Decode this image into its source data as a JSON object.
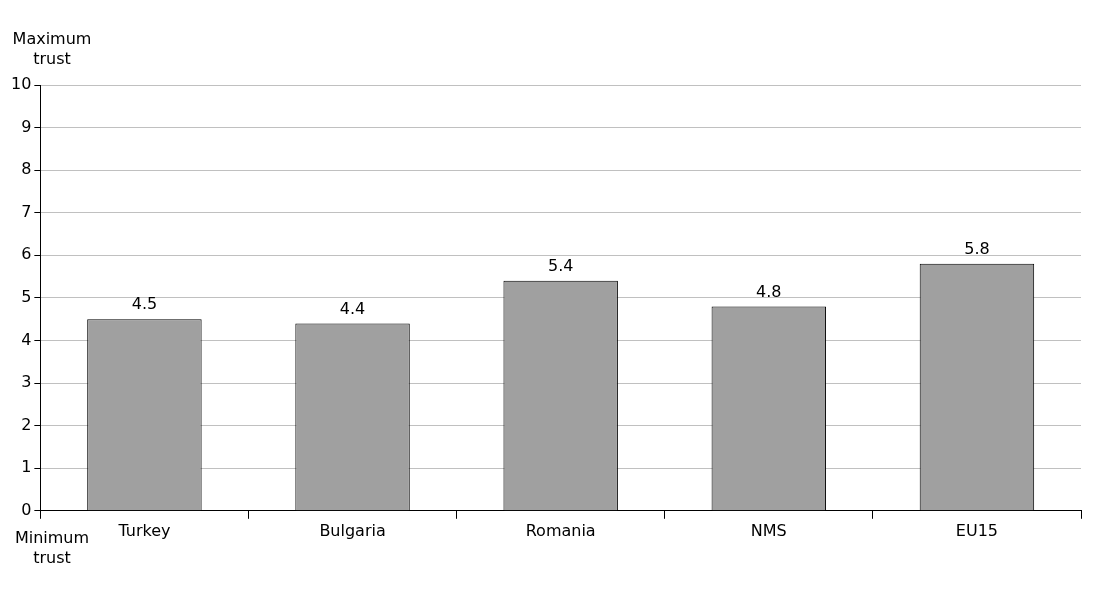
{
  "chart_data": {
    "type": "bar",
    "categories": [
      "Turkey",
      "Bulgaria",
      "Romania",
      "NMS",
      "EU15"
    ],
    "values": [
      4.5,
      4.4,
      5.4,
      4.8,
      5.8
    ],
    "color": "#a0a0a0",
    "ylim": [
      0,
      10
    ],
    "yticks": [
      0,
      1,
      2,
      3,
      4,
      5,
      6,
      7,
      8,
      9,
      10
    ],
    "grid": "y",
    "data_labels": true,
    "annotations": [
      "Maximum trust",
      "Minimum trust"
    ]
  }
}
